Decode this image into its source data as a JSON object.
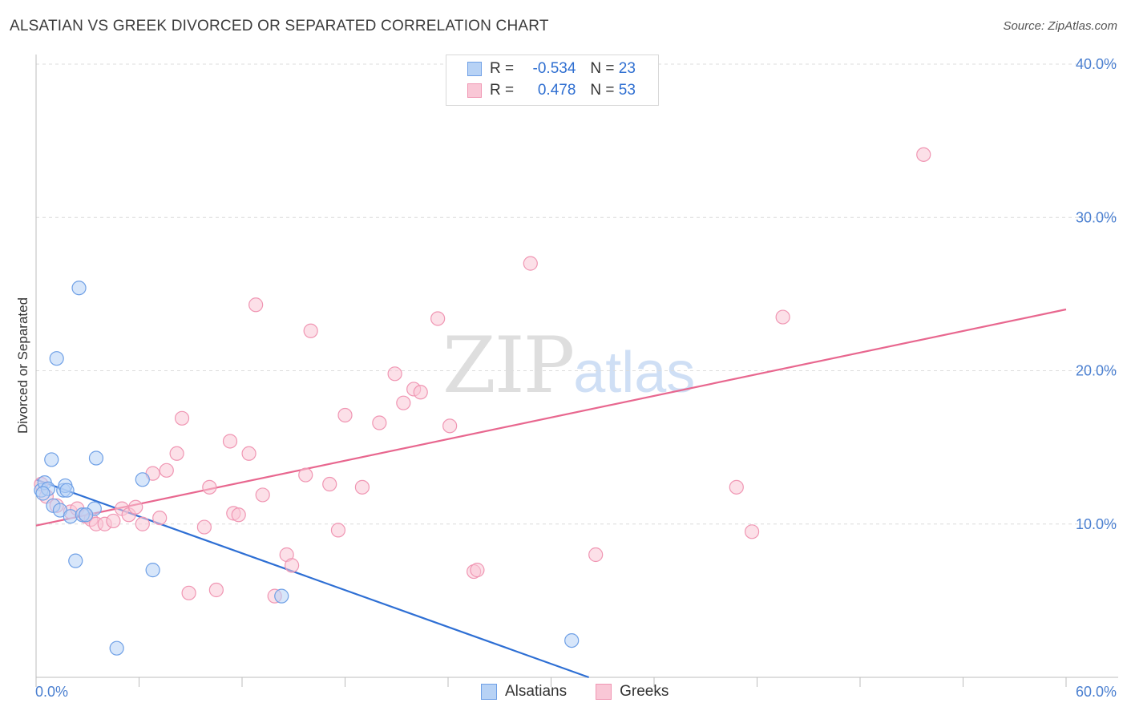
{
  "title": "ALSATIAN VS GREEK DIVORCED OR SEPARATED CORRELATION CHART",
  "source": "Source: ZipAtlas.com",
  "watermark": {
    "zip": "ZIP",
    "atlas": "atlas"
  },
  "legend_top": {
    "r_label": "R =",
    "n_label": "N =",
    "rows": [
      {
        "name": "Alsatians",
        "r": "-0.534",
        "n": "23"
      },
      {
        "name": "Greeks",
        "r": "0.478",
        "n": "53"
      }
    ]
  },
  "legend_bottom": [
    "Alsatians",
    "Greeks"
  ],
  "colors": {
    "alsatian_fill": "#b7d2f5",
    "alsatian_stroke": "#6fa0e6",
    "alsatian_line": "#2e6fd4",
    "greek_fill": "#f9c7d6",
    "greek_stroke": "#f096b3",
    "greek_line": "#e8678f",
    "grid": "#dcdcdc",
    "tick_text": "#4a7fd0"
  },
  "chart_data": {
    "type": "scatter",
    "title": "ALSATIAN VS GREEK DIVORCED OR SEPARATED CORRELATION CHART",
    "xlabel": "",
    "ylabel": "Divorced or Separated",
    "xlim": [
      0,
      60
    ],
    "ylim": [
      0,
      40
    ],
    "x_tick_labels": [
      "0.0%",
      "60.0%"
    ],
    "y_ticks": [
      10,
      20,
      30,
      40
    ],
    "y_tick_labels": [
      "10.0%",
      "20.0%",
      "30.0%",
      "40.0%"
    ],
    "series": [
      {
        "name": "Alsatians",
        "r": -0.534,
        "n": 23,
        "points": [
          [
            0.3,
            12.2
          ],
          [
            0.5,
            12.7
          ],
          [
            0.7,
            12.3
          ],
          [
            0.9,
            14.2
          ],
          [
            1.0,
            11.2
          ],
          [
            1.2,
            20.8
          ],
          [
            1.4,
            10.9
          ],
          [
            1.6,
            12.2
          ],
          [
            1.7,
            12.5
          ],
          [
            1.8,
            12.2
          ],
          [
            2.0,
            10.5
          ],
          [
            2.3,
            7.6
          ],
          [
            2.5,
            25.4
          ],
          [
            2.7,
            10.6
          ],
          [
            3.4,
            11.0
          ],
          [
            3.5,
            14.3
          ],
          [
            4.7,
            1.9
          ],
          [
            6.2,
            12.9
          ],
          [
            6.8,
            7.0
          ],
          [
            14.3,
            5.3
          ],
          [
            31.2,
            2.4
          ],
          [
            0.4,
            12.0
          ],
          [
            2.9,
            10.6
          ]
        ],
        "trend": {
          "x": [
            0,
            32.2
          ],
          "y": [
            12.9,
            0.0
          ]
        }
      },
      {
        "name": "Greeks",
        "r": 0.478,
        "n": 53,
        "points": [
          [
            0.3,
            12.6
          ],
          [
            0.6,
            11.8
          ],
          [
            1.2,
            11.2
          ],
          [
            2.0,
            10.8
          ],
          [
            2.4,
            11.0
          ],
          [
            2.9,
            10.5
          ],
          [
            3.2,
            10.3
          ],
          [
            3.5,
            10.0
          ],
          [
            4.0,
            10.0
          ],
          [
            4.5,
            10.2
          ],
          [
            5.0,
            11.0
          ],
          [
            5.4,
            10.6
          ],
          [
            5.8,
            11.1
          ],
          [
            6.2,
            10.0
          ],
          [
            6.8,
            13.3
          ],
          [
            7.2,
            10.4
          ],
          [
            7.6,
            13.5
          ],
          [
            8.2,
            14.6
          ],
          [
            8.5,
            16.9
          ],
          [
            8.9,
            5.5
          ],
          [
            9.8,
            9.8
          ],
          [
            10.1,
            12.4
          ],
          [
            10.5,
            5.7
          ],
          [
            11.3,
            15.4
          ],
          [
            11.5,
            10.7
          ],
          [
            11.8,
            10.6
          ],
          [
            12.4,
            14.6
          ],
          [
            12.8,
            24.3
          ],
          [
            13.2,
            11.9
          ],
          [
            13.9,
            5.3
          ],
          [
            14.6,
            8.0
          ],
          [
            14.9,
            7.3
          ],
          [
            15.7,
            13.2
          ],
          [
            16.0,
            22.6
          ],
          [
            17.1,
            12.6
          ],
          [
            17.6,
            9.6
          ],
          [
            18.0,
            17.1
          ],
          [
            20.0,
            16.6
          ],
          [
            20.9,
            19.8
          ],
          [
            21.4,
            17.9
          ],
          [
            22.0,
            18.8
          ],
          [
            22.4,
            18.6
          ],
          [
            23.4,
            23.4
          ],
          [
            24.1,
            16.4
          ],
          [
            25.5,
            6.9
          ],
          [
            25.7,
            7.0
          ],
          [
            28.8,
            27.0
          ],
          [
            19.0,
            12.4
          ],
          [
            32.6,
            8.0
          ],
          [
            40.8,
            12.4
          ],
          [
            41.7,
            9.5
          ],
          [
            43.5,
            23.5
          ],
          [
            51.7,
            34.1
          ]
        ],
        "trend": {
          "x": [
            0,
            60
          ],
          "y": [
            9.9,
            24.0
          ]
        }
      }
    ]
  }
}
